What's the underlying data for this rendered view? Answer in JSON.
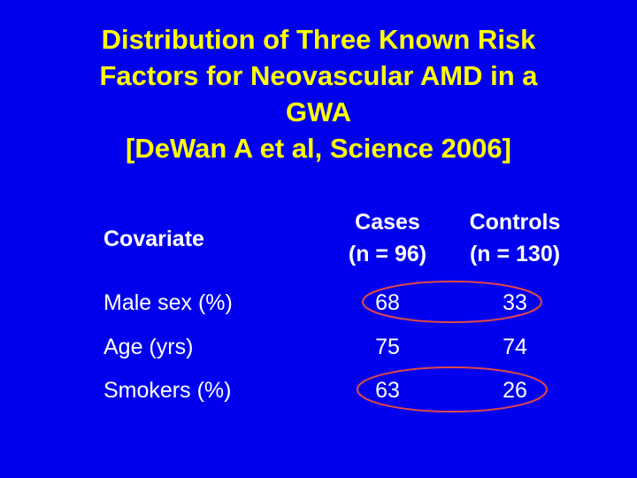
{
  "title": {
    "lines": [
      "Distribution of Three Known Risk",
      "Factors for Neovascular AMD in a",
      "GWA",
      "[DeWan A et al, Science 2006]"
    ]
  },
  "table": {
    "headers": {
      "covariate": "Covariate",
      "cases": [
        "Cases",
        "(n = 96)"
      ],
      "controls": [
        "Controls",
        "(n = 130)"
      ]
    },
    "rows": [
      {
        "label": "Male sex (%)",
        "cases": "68",
        "controls": "33",
        "highlighted": true
      },
      {
        "label": "Age (yrs)",
        "cases": "75",
        "controls": "74",
        "highlighted": false
      },
      {
        "label": "Smokers (%)",
        "cases": "63",
        "controls": "26",
        "highlighted": true
      }
    ]
  },
  "colors": {
    "background": "#0000ee",
    "title": "#ffff00",
    "text": "#ffffff",
    "highlight": "#e04848"
  }
}
